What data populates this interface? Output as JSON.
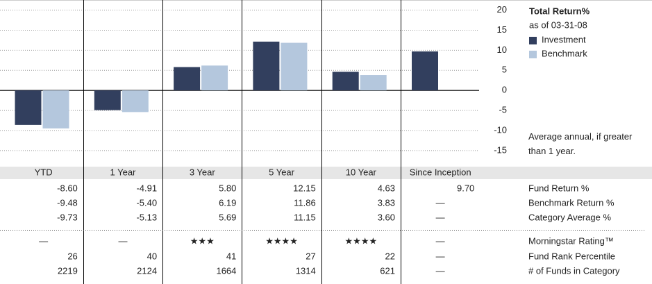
{
  "chart_data": {
    "type": "bar",
    "title": "Total Return%",
    "subtitle": "as of 03-31-08",
    "note": "Average annual, if greater than 1 year.",
    "categories": [
      "YTD",
      "1 Year",
      "3 Year",
      "5 Year",
      "10 Year",
      "Since Inception"
    ],
    "series": [
      {
        "name": "Investment",
        "color": "#323f5e",
        "values": [
          -8.6,
          -4.91,
          5.8,
          12.15,
          4.63,
          9.7
        ]
      },
      {
        "name": "Benchmark",
        "color": "#b4c7dd",
        "values": [
          -9.48,
          -5.4,
          6.19,
          11.86,
          3.83,
          null
        ]
      }
    ],
    "ylim": [
      -19,
      22
    ],
    "yticks": [
      20,
      15,
      10,
      5,
      0,
      -5,
      -10,
      -15
    ],
    "grid": true
  },
  "table": {
    "rows": [
      {
        "label": "Fund Return %",
        "cells": [
          "-8.60",
          "-4.91",
          "5.80",
          "12.15",
          "4.63",
          "9.70"
        ]
      },
      {
        "label": "Benchmark Return %",
        "cells": [
          "-9.48",
          "-5.40",
          "6.19",
          "11.86",
          "3.83",
          "—"
        ]
      },
      {
        "label": "Category Average %",
        "cells": [
          "-9.73",
          "-5.13",
          "5.69",
          "11.15",
          "3.60",
          "—"
        ]
      },
      {
        "label": "Morningstar Rating™",
        "cells": [
          "—",
          "—",
          "★★★",
          "★★★★",
          "★★★★",
          "—"
        ]
      },
      {
        "label": "Fund Rank Percentile",
        "cells": [
          "26",
          "40",
          "41",
          "27",
          "22",
          "—"
        ]
      },
      {
        "label": "# of Funds in Category",
        "cells": [
          "2219",
          "2124",
          "1664",
          "1314",
          "621",
          "—"
        ]
      }
    ]
  }
}
